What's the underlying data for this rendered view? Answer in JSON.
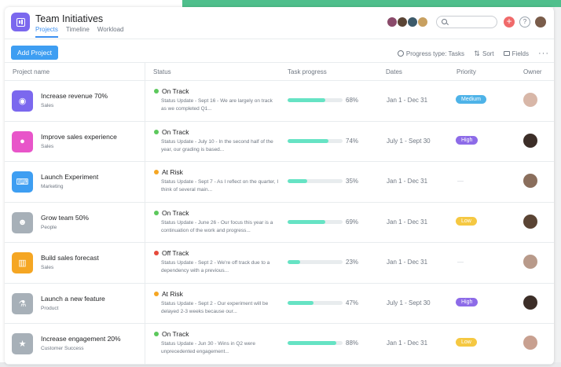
{
  "app": {
    "title": "Team Initiatives",
    "tabs": [
      {
        "label": "Projects",
        "active": true
      },
      {
        "label": "Timeline",
        "active": false
      },
      {
        "label": "Workload",
        "active": false
      }
    ],
    "plus_symbol": "+",
    "help_symbol": "?"
  },
  "toolbar": {
    "add_label": "Add Project",
    "progress_type_label": "Progress type: Tasks",
    "sort_label": "Sort",
    "fields_label": "Fields",
    "more_label": "···"
  },
  "columns": [
    "Project name",
    "Status",
    "Task progress",
    "Dates",
    "Priority",
    "Owner"
  ],
  "colors": {
    "accent": "#3e9ef2",
    "on_track": "#5cc85c",
    "at_risk": "#f5a623",
    "off_track": "#e64a3b",
    "progress": "#66e3c4",
    "medium": "#4eb3e8",
    "high": "#8d6be8",
    "low": "#f5c842"
  },
  "projects": [
    {
      "name": "Increase revenue 70%",
      "team": "Sales",
      "icon": "target-icon",
      "icon_color": "#7b68ee",
      "status": "On Track",
      "status_color": "#5cc85c",
      "status_text": "Status Update - Sept 16 - We are largely on track as we completed Q1...",
      "progress": 68,
      "progress_label": "68%",
      "dates": "Jan 1 - Dec 31",
      "priority": "Medium",
      "priority_color": "#4eb3e8",
      "owner_color": "#d8b7a8"
    },
    {
      "name": "Improve sales experience",
      "team": "Sales",
      "icon": "chat-bubbles-icon",
      "icon_color": "#e855c9",
      "status": "On Track",
      "status_color": "#5cc85c",
      "status_text": "Status Update - July 10 - In the second half of the year, our grading is based...",
      "progress": 74,
      "progress_label": "74%",
      "dates": "July 1 - Sept 30",
      "priority": "High",
      "priority_color": "#8d6be8",
      "owner_color": "#3c2e28"
    },
    {
      "name": "Launch Experiment",
      "team": "Marketing",
      "icon": "code-window-icon",
      "icon_color": "#3e9ef2",
      "status": "At Risk",
      "status_color": "#f5a623",
      "status_text": "Status Update - Sept 7 - As I reflect on the quarter, I think of several main...",
      "progress": 35,
      "progress_label": "35%",
      "dates": "Jan 1 - Dec 31",
      "priority": "",
      "priority_color": "",
      "owner_color": "#8a6e5c"
    },
    {
      "name": "Grow team 50%",
      "team": "People",
      "icon": "people-icon",
      "icon_color": "#a7b0b8",
      "status": "On Track",
      "status_color": "#5cc85c",
      "status_text": "Status Update - June 26 - Our focus this year is a continuation of the work and progress...",
      "progress": 69,
      "progress_label": "69%",
      "dates": "Jan 1 - Dec 31",
      "priority": "Low",
      "priority_color": "#f5c842",
      "owner_color": "#5a4434"
    },
    {
      "name": "Build sales forecast",
      "team": "Sales",
      "icon": "columns-icon",
      "icon_color": "#f5a623",
      "status": "Off Track",
      "status_color": "#e64a3b",
      "status_text": "Status Update - Sept 2 - We're off track due to a dependency with a previous...",
      "progress": 23,
      "progress_label": "23%",
      "dates": "Jan 1 - Dec 31",
      "priority": "",
      "priority_color": "",
      "owner_color": "#b89a8a"
    },
    {
      "name": "Launch a new feature",
      "team": "Product",
      "icon": "flask-icon",
      "icon_color": "#a7b0b8",
      "status": "At Risk",
      "status_color": "#f5a623",
      "status_text": "Status Update - Sept 2 - Our experiment will be delayed 2-3 weeks because our...",
      "progress": 47,
      "progress_label": "47%",
      "dates": "July 1 - Sept 30",
      "priority": "High",
      "priority_color": "#8d6be8",
      "owner_color": "#3c2e28"
    },
    {
      "name": "Increase engagement 20%",
      "team": "Customer Success",
      "icon": "star-icon",
      "icon_color": "#a7b0b8",
      "status": "On Track",
      "status_color": "#5cc85c",
      "status_text": "Status Update - Jun 30 - Wins in Q2 were unprecedented engagement...",
      "progress": 88,
      "progress_label": "88%",
      "dates": "Jan 1 - Dec 31",
      "priority": "Low",
      "priority_color": "#f5c842",
      "owner_color": "#c8a090"
    }
  ],
  "members": [
    {
      "color": "#8a4a6a"
    },
    {
      "color": "#5a4434"
    },
    {
      "color": "#3c5a6a"
    },
    {
      "color": "#c8a060"
    }
  ]
}
